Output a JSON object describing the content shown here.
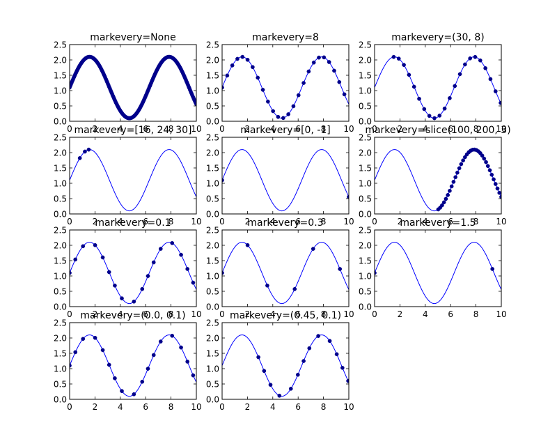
{
  "chart_data": {
    "type": "line",
    "series_color": "#0000ff",
    "marker_color": "#00008b",
    "curve_description": "y = sin(x) + 1.1",
    "x_range": [
      0,
      10
    ],
    "y_range": [
      0,
      2.5
    ],
    "x_ticks": [
      "0",
      "2",
      "4",
      "6",
      "8",
      "10"
    ],
    "y_ticks": [
      "0.0",
      "0.5",
      "1.0",
      "1.5",
      "2.0",
      "2.5"
    ],
    "num_points": 200,
    "subplots": [
      {
        "title": "markevery=None",
        "markers": {
          "mode": "all"
        }
      },
      {
        "title": "markevery=8",
        "markers": {
          "mode": "step",
          "start": 0,
          "step": 8
        }
      },
      {
        "title": "markevery=(30, 8)",
        "markers": {
          "mode": "step",
          "start": 30,
          "step": 8
        }
      },
      {
        "title": "markevery=[16, 24, 30]",
        "markers": {
          "mode": "list",
          "indices": [
            16,
            24,
            30
          ]
        }
      },
      {
        "title": "markevery=[0, -1]",
        "markers": {
          "mode": "list",
          "indices": [
            0,
            199
          ]
        }
      },
      {
        "title": "markevery=slice(100, 200, 3)",
        "markers": {
          "mode": "slice",
          "start": 100,
          "stop": 200,
          "step": 3
        }
      },
      {
        "title": "markevery=0.1",
        "markers": {
          "mode": "frac",
          "start": 0.0,
          "step": 0.1
        }
      },
      {
        "title": "markevery=0.3",
        "markers": {
          "mode": "frac",
          "start": 0.0,
          "step": 0.3
        }
      },
      {
        "title": "markevery=1.5",
        "markers": {
          "mode": "frac",
          "start": 0.0,
          "step": 1.5
        }
      },
      {
        "title": "markevery=(0.0, 0.1)",
        "markers": {
          "mode": "frac",
          "start": 0.0,
          "step": 0.1
        }
      },
      {
        "title": "markevery=(0.45, 0.1)",
        "markers": {
          "mode": "frac",
          "start": 0.45,
          "step": 0.1
        }
      }
    ]
  }
}
